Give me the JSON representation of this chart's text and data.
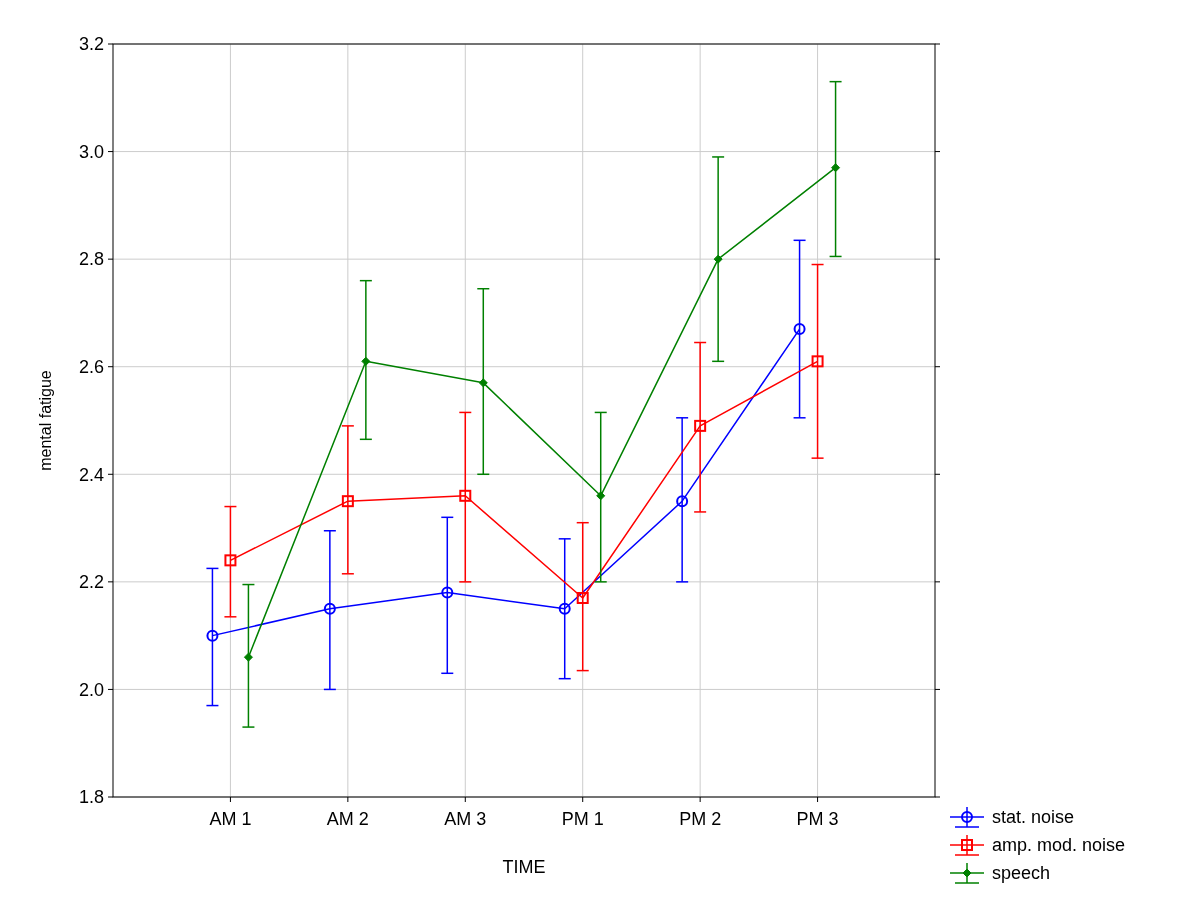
{
  "chart_data": {
    "type": "line",
    "xlabel": "TIME",
    "ylabel": "mental fatigue",
    "categories": [
      "AM 1",
      "AM 2",
      "AM 3",
      "PM 1",
      "PM 2",
      "PM 3"
    ],
    "ylim": [
      1.8,
      3.2
    ],
    "yticks": [
      {
        "value": 1.8,
        "label": "1.8"
      },
      {
        "value": 2.0,
        "label": "2.0"
      },
      {
        "value": 2.2,
        "label": "2.2"
      },
      {
        "value": 2.4,
        "label": "2.4"
      },
      {
        "value": 2.6,
        "label": "2.6"
      },
      {
        "value": 2.8,
        "label": "2.8"
      },
      {
        "value": 3.0,
        "label": "3.0"
      },
      {
        "value": 3.2,
        "label": "3.2"
      }
    ],
    "grid": true,
    "legend": "bottom right",
    "series": [
      {
        "name": "stat. noise",
        "color": "#0000ff",
        "marker": "circle",
        "values": [
          2.1,
          2.15,
          2.18,
          2.15,
          2.35,
          2.67
        ],
        "errors": [
          [
            1.97,
            2.225
          ],
          [
            2.0,
            2.295
          ],
          [
            2.03,
            2.32
          ],
          [
            2.02,
            2.28
          ],
          [
            2.2,
            2.505
          ],
          [
            2.505,
            2.835
          ]
        ]
      },
      {
        "name": "amp. mod. noise",
        "color": "#ff0000",
        "marker": "square",
        "values": [
          2.24,
          2.35,
          2.36,
          2.17,
          2.49,
          2.61
        ],
        "errors": [
          [
            2.135,
            2.34
          ],
          [
            2.215,
            2.49
          ],
          [
            2.2,
            2.515
          ],
          [
            2.035,
            2.31
          ],
          [
            2.33,
            2.645
          ],
          [
            2.43,
            2.79
          ]
        ]
      },
      {
        "name": "speech",
        "color": "#008000",
        "marker": "diamond",
        "values": [
          2.06,
          2.61,
          2.57,
          2.36,
          2.8,
          2.97
        ],
        "errors": [
          [
            1.93,
            2.195
          ],
          [
            2.465,
            2.76
          ],
          [
            2.4,
            2.745
          ],
          [
            2.2,
            2.515
          ],
          [
            2.61,
            2.99
          ],
          [
            2.805,
            3.13
          ]
        ]
      }
    ]
  }
}
